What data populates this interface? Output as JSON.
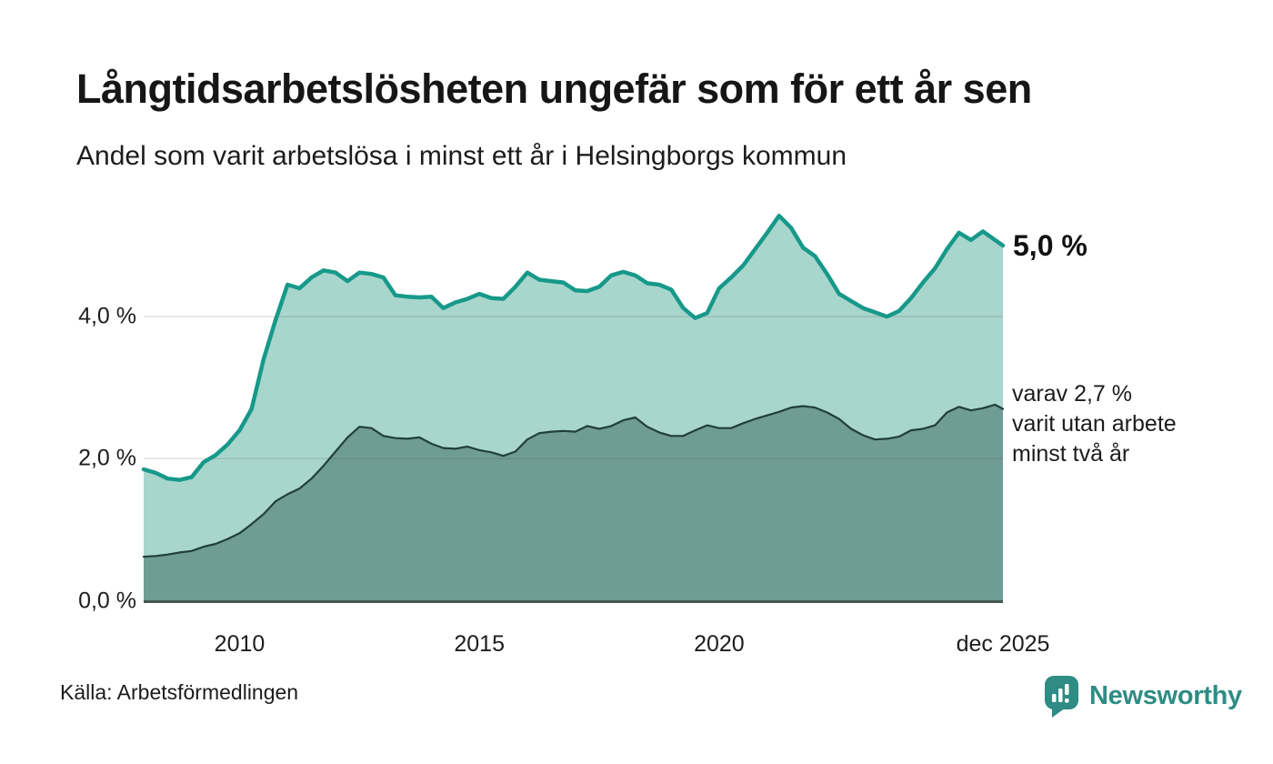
{
  "header": {
    "title": "Långtidsarbetslösheten ungefär som för ett år sen",
    "subtitle": "Andel som varit arbetslösa i minst ett år i Helsingborgs kommun"
  },
  "annotations": {
    "total_end_label": "5,0 %",
    "two_year_end_label_lines": [
      "varav 2,7 %",
      "varit utan arbete",
      "minst två år"
    ]
  },
  "footer": {
    "source": "Källa: Arbetsförmedlingen",
    "brand": "Newsworthy"
  },
  "colors": {
    "total_line": "#17998a",
    "total_fill": "#a8d6cc",
    "two_year_line": "#20403a",
    "two_year_fill": "#6f9c94",
    "gridline": "rgba(70,70,70,0.16)",
    "baseline": "#44564f",
    "brand_teal": "#2e8c84",
    "brand_icon_bars": "#ffffff"
  },
  "chart_data": {
    "type": "area",
    "title": "Långtidsarbetslösheten ungefär som för ett år sen",
    "subtitle": "Andel som varit arbetslösa i minst ett år i Helsingborgs kommun",
    "unit": "%",
    "x_range": [
      2008.0,
      2025.917
    ],
    "ylim": [
      0,
      5.6
    ],
    "grid": "horizontal",
    "legend_position": "right-inline-labels",
    "y_ticks": [
      {
        "value": 0,
        "label": "0,0 %"
      },
      {
        "value": 2,
        "label": "2,0 %"
      },
      {
        "value": 4,
        "label": "4,0 %"
      }
    ],
    "x_ticks": [
      {
        "t": 2010,
        "label": "2010"
      },
      {
        "t": 2015,
        "label": "2015"
      },
      {
        "t": 2020,
        "label": "2020"
      },
      {
        "t": 2025.917,
        "label": "dec 2025"
      }
    ],
    "gridline_values": [
      2,
      4
    ],
    "series": [
      {
        "name": "Arbetslösa minst ett år (totalt)",
        "end_value": 5.0,
        "points": [
          [
            2008.0,
            1.85
          ],
          [
            2008.25,
            1.8
          ],
          [
            2008.5,
            1.72
          ],
          [
            2008.75,
            1.7
          ],
          [
            2009.0,
            1.74
          ],
          [
            2009.25,
            1.95
          ],
          [
            2009.5,
            2.05
          ],
          [
            2009.75,
            2.2
          ],
          [
            2010.0,
            2.4
          ],
          [
            2010.25,
            2.7
          ],
          [
            2010.5,
            3.4
          ],
          [
            2010.75,
            3.95
          ],
          [
            2011.0,
            4.45
          ],
          [
            2011.25,
            4.4
          ],
          [
            2011.5,
            4.55
          ],
          [
            2011.75,
            4.65
          ],
          [
            2012.0,
            4.62
          ],
          [
            2012.25,
            4.5
          ],
          [
            2012.5,
            4.62
          ],
          [
            2012.75,
            4.6
          ],
          [
            2013.0,
            4.55
          ],
          [
            2013.25,
            4.3
          ],
          [
            2013.5,
            4.28
          ],
          [
            2013.75,
            4.27
          ],
          [
            2014.0,
            4.28
          ],
          [
            2014.25,
            4.12
          ],
          [
            2014.5,
            4.2
          ],
          [
            2014.75,
            4.25
          ],
          [
            2015.0,
            4.32
          ],
          [
            2015.25,
            4.26
          ],
          [
            2015.5,
            4.25
          ],
          [
            2015.75,
            4.42
          ],
          [
            2016.0,
            4.62
          ],
          [
            2016.25,
            4.52
          ],
          [
            2016.5,
            4.5
          ],
          [
            2016.75,
            4.48
          ],
          [
            2017.0,
            4.37
          ],
          [
            2017.25,
            4.36
          ],
          [
            2017.5,
            4.42
          ],
          [
            2017.75,
            4.58
          ],
          [
            2018.0,
            4.63
          ],
          [
            2018.25,
            4.58
          ],
          [
            2018.5,
            4.47
          ],
          [
            2018.75,
            4.45
          ],
          [
            2019.0,
            4.38
          ],
          [
            2019.25,
            4.12
          ],
          [
            2019.5,
            3.98
          ],
          [
            2019.75,
            4.05
          ],
          [
            2020.0,
            4.4
          ],
          [
            2020.25,
            4.55
          ],
          [
            2020.5,
            4.72
          ],
          [
            2020.75,
            4.95
          ],
          [
            2021.0,
            5.18
          ],
          [
            2021.25,
            5.42
          ],
          [
            2021.5,
            5.25
          ],
          [
            2021.75,
            4.97
          ],
          [
            2022.0,
            4.85
          ],
          [
            2022.25,
            4.6
          ],
          [
            2022.5,
            4.32
          ],
          [
            2022.75,
            4.22
          ],
          [
            2023.0,
            4.12
          ],
          [
            2023.25,
            4.06
          ],
          [
            2023.5,
            4.0
          ],
          [
            2023.75,
            4.08
          ],
          [
            2024.0,
            4.26
          ],
          [
            2024.25,
            4.48
          ],
          [
            2024.5,
            4.68
          ],
          [
            2024.75,
            4.95
          ],
          [
            2025.0,
            5.18
          ],
          [
            2025.25,
            5.08
          ],
          [
            2025.5,
            5.2
          ],
          [
            2025.75,
            5.08
          ],
          [
            2025.917,
            5.0
          ]
        ]
      },
      {
        "name": "varav utan arbete minst två år",
        "end_value": 2.7,
        "points": [
          [
            2008.0,
            0.62
          ],
          [
            2008.25,
            0.63
          ],
          [
            2008.5,
            0.65
          ],
          [
            2008.75,
            0.68
          ],
          [
            2009.0,
            0.7
          ],
          [
            2009.25,
            0.76
          ],
          [
            2009.5,
            0.8
          ],
          [
            2009.75,
            0.87
          ],
          [
            2010.0,
            0.95
          ],
          [
            2010.25,
            1.08
          ],
          [
            2010.5,
            1.22
          ],
          [
            2010.75,
            1.4
          ],
          [
            2011.0,
            1.5
          ],
          [
            2011.25,
            1.58
          ],
          [
            2011.5,
            1.72
          ],
          [
            2011.75,
            1.9
          ],
          [
            2012.0,
            2.1
          ],
          [
            2012.25,
            2.3
          ],
          [
            2012.5,
            2.45
          ],
          [
            2012.75,
            2.43
          ],
          [
            2013.0,
            2.32
          ],
          [
            2013.25,
            2.29
          ],
          [
            2013.5,
            2.28
          ],
          [
            2013.75,
            2.3
          ],
          [
            2014.0,
            2.21
          ],
          [
            2014.25,
            2.15
          ],
          [
            2014.5,
            2.14
          ],
          [
            2014.75,
            2.17
          ],
          [
            2015.0,
            2.12
          ],
          [
            2015.25,
            2.09
          ],
          [
            2015.5,
            2.04
          ],
          [
            2015.75,
            2.1
          ],
          [
            2016.0,
            2.27
          ],
          [
            2016.25,
            2.36
          ],
          [
            2016.5,
            2.38
          ],
          [
            2016.75,
            2.39
          ],
          [
            2017.0,
            2.38
          ],
          [
            2017.25,
            2.46
          ],
          [
            2017.5,
            2.42
          ],
          [
            2017.75,
            2.46
          ],
          [
            2018.0,
            2.54
          ],
          [
            2018.25,
            2.58
          ],
          [
            2018.5,
            2.45
          ],
          [
            2018.75,
            2.37
          ],
          [
            2019.0,
            2.32
          ],
          [
            2019.25,
            2.32
          ],
          [
            2019.5,
            2.4
          ],
          [
            2019.75,
            2.47
          ],
          [
            2020.0,
            2.43
          ],
          [
            2020.25,
            2.43
          ],
          [
            2020.5,
            2.5
          ],
          [
            2020.75,
            2.56
          ],
          [
            2021.0,
            2.61
          ],
          [
            2021.25,
            2.66
          ],
          [
            2021.5,
            2.72
          ],
          [
            2021.75,
            2.74
          ],
          [
            2022.0,
            2.72
          ],
          [
            2022.25,
            2.65
          ],
          [
            2022.5,
            2.56
          ],
          [
            2022.75,
            2.42
          ],
          [
            2023.0,
            2.33
          ],
          [
            2023.25,
            2.27
          ],
          [
            2023.5,
            2.28
          ],
          [
            2023.75,
            2.31
          ],
          [
            2024.0,
            2.4
          ],
          [
            2024.25,
            2.42
          ],
          [
            2024.5,
            2.47
          ],
          [
            2024.75,
            2.65
          ],
          [
            2025.0,
            2.73
          ],
          [
            2025.25,
            2.68
          ],
          [
            2025.5,
            2.71
          ],
          [
            2025.75,
            2.76
          ],
          [
            2025.917,
            2.7
          ]
        ]
      }
    ]
  }
}
